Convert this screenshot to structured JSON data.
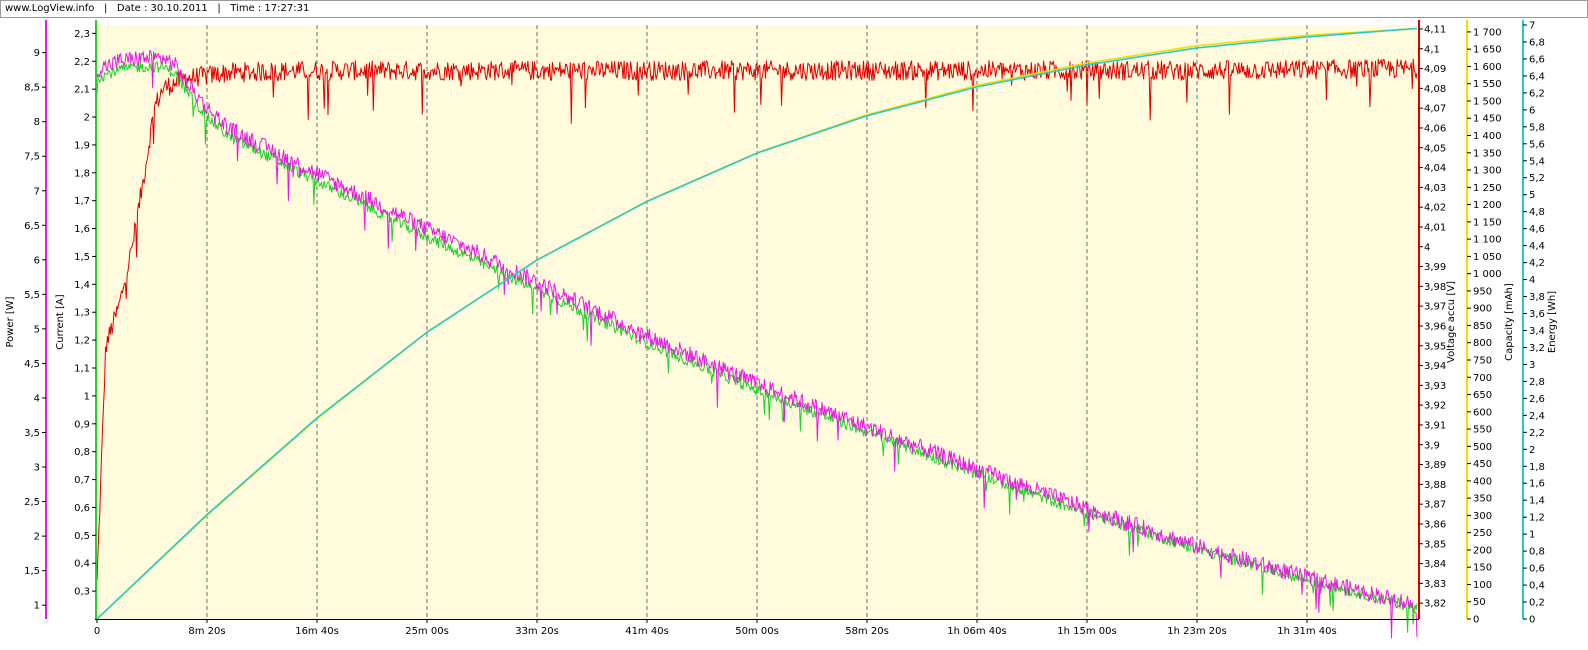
{
  "header": {
    "site": "www.LogView.info",
    "date": "Date : 30.10.2011",
    "time": "Time : 17:27:31",
    "separator": "|"
  },
  "colors": {
    "plot_background": "#fffbdc",
    "power": "#e51be5",
    "current": "#22d02b",
    "voltage": "#e00000",
    "capacity": "#f0e000",
    "energy": "#28c8d2",
    "gridline": "#6e6e6e"
  },
  "chart_data": {
    "type": "line",
    "x": {
      "unit": "seconds",
      "range": [
        0,
        6000
      ],
      "ticks": [
        0,
        500,
        1000,
        1500,
        2000,
        2500,
        3000,
        3500,
        4000,
        4500,
        5000,
        5500
      ],
      "tick_labels": [
        "0",
        "8m 20s",
        "16m 40s",
        "25m 00s",
        "33m 20s",
        "41m 40s",
        "50m 00s",
        "58m 20s",
        "1h 06m 40s",
        "1h 15m 00s",
        "1h 23m 20s",
        "1h 31m 40s"
      ]
    },
    "axes": [
      {
        "id": "power",
        "label": "Power [W]",
        "side": "left",
        "color": "#e51be5",
        "range": [
          0.8,
          9.4
        ],
        "ticks": [
          1,
          1.5,
          2,
          2.5,
          3,
          3.5,
          4,
          4.5,
          5,
          5.5,
          6,
          6.5,
          7,
          7.5,
          8,
          8.5,
          9
        ],
        "tick_labels": [
          "1",
          "1,5",
          "2",
          "2,5",
          "3",
          "3,5",
          "4",
          "4,5",
          "5",
          "5,5",
          "6",
          "6,5",
          "7",
          "7,5",
          "8",
          "8,5",
          "9"
        ]
      },
      {
        "id": "current",
        "label": "Current [A]",
        "side": "left",
        "color": "#22d02b",
        "range": [
          0.2,
          2.33
        ],
        "ticks": [
          0.3,
          0.4,
          0.5,
          0.6,
          0.7,
          0.8,
          0.9,
          1,
          1.1,
          1.2,
          1.3,
          1.4,
          1.5,
          1.6,
          1.7,
          1.8,
          1.9,
          2,
          2.1,
          2.2,
          2.3
        ],
        "tick_labels": [
          "0,3",
          "0,4",
          "0,5",
          "0,6",
          "0,7",
          "0,8",
          "0,9",
          "1",
          "1,1",
          "1,2",
          "1,3",
          "1,4",
          "1,5",
          "1,6",
          "1,7",
          "1,8",
          "1,9",
          "2",
          "2,1",
          "2,2",
          "2,3"
        ]
      },
      {
        "id": "voltage",
        "label": "Voltage accu [V]",
        "side": "right",
        "color": "#e00000",
        "range": [
          3.812,
          4.112
        ],
        "ticks": [
          3.82,
          3.83,
          3.84,
          3.85,
          3.86,
          3.87,
          3.88,
          3.89,
          3.9,
          3.91,
          3.92,
          3.93,
          3.94,
          3.95,
          3.96,
          3.97,
          3.98,
          3.99,
          4,
          4.01,
          4.02,
          4.03,
          4.04,
          4.05,
          4.06,
          4.07,
          4.08,
          4.09,
          4.1,
          4.11
        ],
        "tick_labels": [
          "3,82",
          "3,83",
          "3,84",
          "3,85",
          "3,86",
          "3,87",
          "3,88",
          "3,89",
          "3,9",
          "3,91",
          "3,92",
          "3,93",
          "3,94",
          "3,95",
          "3,96",
          "3,97",
          "3,98",
          "3,99",
          "4",
          "4,01",
          "4,02",
          "4,03",
          "4,04",
          "4,05",
          "4,06",
          "4,07",
          "4,08",
          "4,09",
          "4,1",
          "4,11"
        ]
      },
      {
        "id": "capacity",
        "label": "Capacity [mAh]",
        "side": "right",
        "color": "#f0e000",
        "range": [
          0,
          1720
        ],
        "ticks": [
          0,
          50,
          100,
          150,
          200,
          250,
          300,
          350,
          400,
          450,
          500,
          550,
          600,
          650,
          700,
          750,
          800,
          850,
          900,
          950,
          1000,
          1050,
          1100,
          1150,
          1200,
          1250,
          1300,
          1350,
          1400,
          1450,
          1500,
          1550,
          1600,
          1650,
          1700
        ],
        "tick_labels": [
          "0",
          "50",
          "100",
          "150",
          "200",
          "250",
          "300",
          "350",
          "400",
          "450",
          "500",
          "550",
          "600",
          "650",
          "700",
          "750",
          "800",
          "850",
          "900",
          "950",
          "1 000",
          "1 050",
          "1 100",
          "1 150",
          "1 200",
          "1 250",
          "1 300",
          "1 350",
          "1 400",
          "1 450",
          "1 500",
          "1 550",
          "1 600",
          "1 650",
          "1 700"
        ]
      },
      {
        "id": "energy",
        "label": "Energy [Wh]",
        "side": "right",
        "color": "#28c8d2",
        "range": [
          0,
          7
        ],
        "ticks": [
          0,
          0.2,
          0.4,
          0.6,
          0.8,
          1,
          1.2,
          1.4,
          1.6,
          1.8,
          2,
          2.2,
          2.4,
          2.6,
          2.8,
          3,
          3.2,
          3.4,
          3.6,
          3.8,
          4,
          4.2,
          4.4,
          4.6,
          4.8,
          5,
          5.2,
          5.4,
          5.6,
          5.8,
          6,
          6.2,
          6.4,
          6.6,
          6.8,
          7
        ],
        "tick_labels": [
          "0",
          "0,2",
          "0,4",
          "0,6",
          "0,8",
          "1",
          "1,2",
          "1,4",
          "1,6",
          "1,8",
          "2",
          "2,2",
          "2,4",
          "2,6",
          "2,8",
          "3",
          "3,2",
          "3,4",
          "3,6",
          "3,8",
          "4",
          "4,2",
          "4,4",
          "4,6",
          "4,8",
          "5",
          "5,2",
          "5,4",
          "5,6",
          "5,8",
          "6",
          "6,2",
          "6,4",
          "6,6",
          "6,8",
          "7"
        ]
      }
    ],
    "series": [
      {
        "name": "Voltage accu [V]",
        "axis": "voltage",
        "color": "#e00000",
        "noise": 0.005,
        "points": [
          [
            0,
            3.83
          ],
          [
            40,
            3.95
          ],
          [
            100,
            3.97
          ],
          [
            160,
            4.0
          ],
          [
            220,
            4.04
          ],
          [
            260,
            4.07
          ],
          [
            300,
            4.08
          ],
          [
            400,
            4.085
          ],
          [
            600,
            4.088
          ],
          [
            1000,
            4.089
          ],
          [
            2000,
            4.089
          ],
          [
            3000,
            4.089
          ],
          [
            4000,
            4.089
          ],
          [
            5000,
            4.089
          ],
          [
            6000,
            4.09
          ]
        ]
      },
      {
        "name": "Current [A]",
        "axis": "current",
        "color": "#22d02b",
        "noise": 0.02,
        "points": [
          [
            0,
            2.14
          ],
          [
            100,
            2.17
          ],
          [
            200,
            2.18
          ],
          [
            300,
            2.18
          ],
          [
            350,
            2.16
          ],
          [
            400,
            2.1
          ],
          [
            500,
            2.0
          ],
          [
            600,
            1.93
          ],
          [
            1000,
            1.77
          ],
          [
            1500,
            1.57
          ],
          [
            2000,
            1.38
          ],
          [
            2500,
            1.19
          ],
          [
            3000,
            1.02
          ],
          [
            3500,
            0.87
          ],
          [
            4000,
            0.72
          ],
          [
            4500,
            0.58
          ],
          [
            5000,
            0.45
          ],
          [
            5500,
            0.34
          ],
          [
            6000,
            0.24
          ]
        ]
      },
      {
        "name": "Power [W]",
        "axis": "power",
        "color": "#e51be5",
        "noise": 0.12,
        "points": [
          [
            0,
            8.75
          ],
          [
            100,
            8.88
          ],
          [
            200,
            8.92
          ],
          [
            300,
            8.92
          ],
          [
            350,
            8.84
          ],
          [
            400,
            8.6
          ],
          [
            500,
            8.2
          ],
          [
            600,
            7.9
          ],
          [
            1000,
            7.25
          ],
          [
            1500,
            6.45
          ],
          [
            2000,
            5.68
          ],
          [
            2500,
            4.9
          ],
          [
            3000,
            4.2
          ],
          [
            3500,
            3.58
          ],
          [
            4000,
            2.97
          ],
          [
            4500,
            2.4
          ],
          [
            5000,
            1.85
          ],
          [
            5500,
            1.4
          ],
          [
            6000,
            1.0
          ]
        ]
      },
      {
        "name": "Capacity [mAh]",
        "axis": "capacity",
        "color": "#f0e000",
        "noise": 0,
        "points": [
          [
            0,
            0
          ],
          [
            500,
            300
          ],
          [
            1000,
            580
          ],
          [
            1500,
            830
          ],
          [
            2000,
            1040
          ],
          [
            2500,
            1210
          ],
          [
            3000,
            1350
          ],
          [
            3500,
            1460
          ],
          [
            4000,
            1545
          ],
          [
            4500,
            1610
          ],
          [
            5000,
            1660
          ],
          [
            5500,
            1690
          ],
          [
            6000,
            1710
          ]
        ]
      },
      {
        "name": "Energy [Wh]",
        "axis": "energy",
        "color": "#28c8d2",
        "noise": 0,
        "points": [
          [
            0,
            0
          ],
          [
            500,
            1.23
          ],
          [
            1000,
            2.37
          ],
          [
            1500,
            3.38
          ],
          [
            2000,
            4.23
          ],
          [
            2500,
            4.92
          ],
          [
            3000,
            5.49
          ],
          [
            3500,
            5.93
          ],
          [
            4000,
            6.27
          ],
          [
            4500,
            6.53
          ],
          [
            5000,
            6.73
          ],
          [
            5500,
            6.86
          ],
          [
            6000,
            6.96
          ]
        ]
      }
    ]
  }
}
